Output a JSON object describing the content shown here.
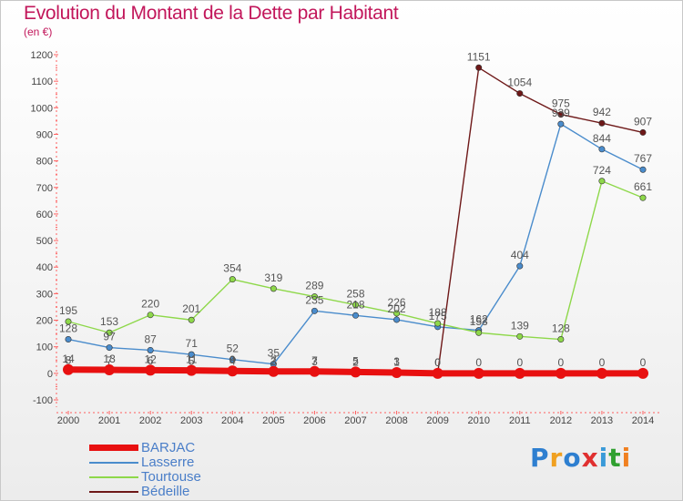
{
  "header": {
    "title": "Evolution du Montant de la Dette par Habitant",
    "subtitle": "(en €)"
  },
  "logo": {
    "letters": [
      "P",
      "r",
      "o",
      "x",
      "i",
      "t",
      "i"
    ],
    "colors": [
      "#2e7fd0",
      "#f0a020",
      "#2e7fd0",
      "#e03030",
      "#3a9ad8",
      "#30a030",
      "#f08020"
    ]
  },
  "chart_data": {
    "type": "line",
    "title": "Evolution du Montant de la Dette par Habitant",
    "subtitle": "(en €)",
    "x": [
      2000,
      2001,
      2002,
      2003,
      2004,
      2005,
      2006,
      2007,
      2008,
      2009,
      2010,
      2011,
      2012,
      2013,
      2014
    ],
    "ylim": [
      -100,
      1200
    ],
    "yticks": [
      -100,
      0,
      100,
      200,
      300,
      400,
      500,
      600,
      700,
      800,
      900,
      1000,
      1100,
      1200
    ],
    "grid": false,
    "legend_position": "bottom-left",
    "series": [
      {
        "name": "BARJAC",
        "color": "#e81010",
        "values": [
          14,
          13,
          12,
          11,
          9,
          7,
          7,
          5,
          3,
          0,
          0,
          0,
          0,
          0,
          0
        ]
      },
      {
        "name": "Lasserre",
        "color": "#4a8ccc",
        "values": [
          128,
          97,
          87,
          71,
          52,
          35,
          235,
          218,
          202,
          175,
          162,
          404,
          939,
          844,
          767
        ]
      },
      {
        "name": "Tourtouse",
        "color": "#8ed84a",
        "values": [
          195,
          153,
          220,
          201,
          354,
          319,
          289,
          258,
          226,
          188,
          153,
          139,
          128,
          724,
          661
        ]
      },
      {
        "name": "Bédeille",
        "color": "#6e1818",
        "values": [
          8,
          7,
          6,
          5,
          4,
          3,
          3,
          2,
          1,
          0,
          1151,
          1054,
          975,
          942,
          907
        ]
      }
    ]
  }
}
